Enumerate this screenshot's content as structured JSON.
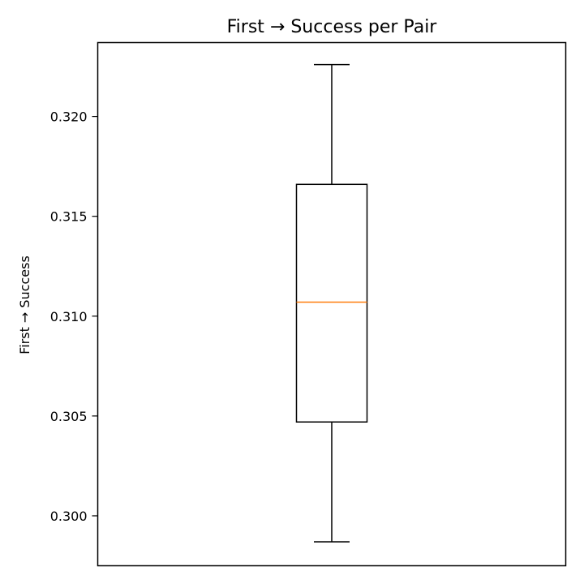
{
  "chart_data": {
    "type": "box",
    "title": "First → Success per Pair",
    "xlabel": "",
    "ylabel": "First → Success",
    "ylim": [
      0.2975,
      0.3237
    ],
    "yticks": [
      0.3,
      0.305,
      0.31,
      0.315,
      0.32
    ],
    "ytick_labels": [
      "0.300",
      "0.305",
      "0.310",
      "0.315",
      "0.320"
    ],
    "grid": false,
    "series": [
      {
        "whisker_low": 0.2987,
        "q1": 0.3047,
        "median": 0.3107,
        "q3": 0.3166,
        "whisker_high": 0.3226
      }
    ],
    "colors": {
      "box": "#000000",
      "median": "#ff7f0e"
    }
  }
}
